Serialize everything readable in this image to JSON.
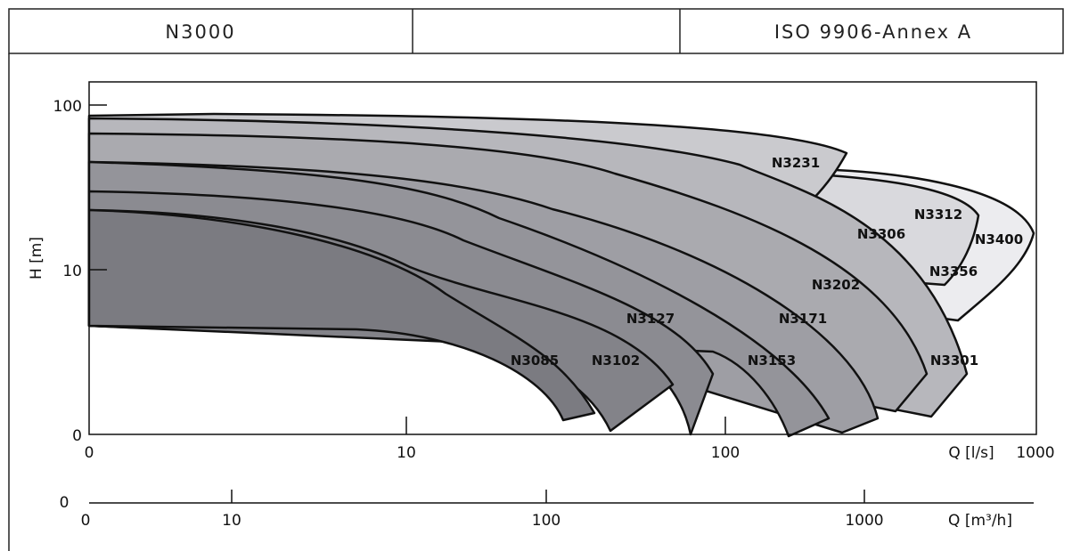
{
  "header": {
    "left": "N3000",
    "middle": "",
    "right": "ISO 9906-Annex A"
  },
  "y_axis": {
    "label": "H [m]",
    "ticks": [
      "100",
      "10",
      "0"
    ]
  },
  "x_axis": {
    "label": "Q [l/s]",
    "ticks": [
      "0",
      "10",
      "100",
      "1000"
    ]
  },
  "x2_axis": {
    "label": "Q [m³/h]",
    "ticks": [
      "0",
      "10",
      "100",
      "1000"
    ],
    "left_label": "0"
  },
  "pumps": [
    "N3231",
    "N3312",
    "N3400",
    "N3306",
    "N3356",
    "N3202",
    "N3127",
    "N3171",
    "N3085",
    "N3102",
    "N3153",
    "N3301"
  ]
}
